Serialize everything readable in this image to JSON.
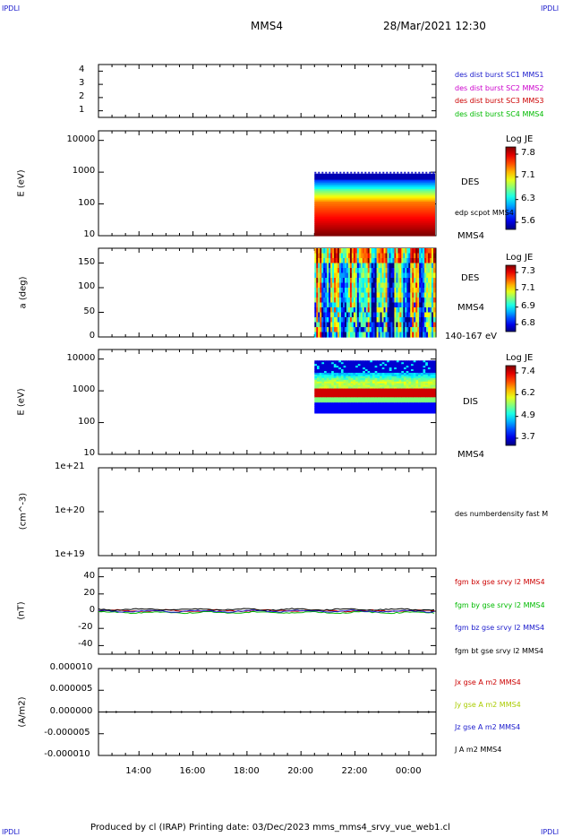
{
  "header": {
    "corner_tl": "IPDLI",
    "corner_tr": "IPDLI",
    "corner_bl": "IPDLI",
    "corner_br": "IPDLI",
    "spacecraft": "MMS4",
    "datetime": "28/Mar/2021 12:30"
  },
  "footer": {
    "text": "Produced by cl (IRAP)    Printing date: 03/Dec/2023    mms_mms4_srvy_vue_web1.cl"
  },
  "time_axis": {
    "ticks": [
      "14:00",
      "16:00",
      "18:00",
      "20:00",
      "22:00",
      "00:00"
    ]
  },
  "chart_data": [
    {
      "type": "line",
      "panel": "burst",
      "ylabel": "",
      "yticks": [
        "4",
        "3",
        "2",
        "1"
      ],
      "ylim": [
        0.5,
        4.5
      ],
      "legend": [
        {
          "text": "des dist burst SC1 MMS1",
          "color": "#1a1acc"
        },
        {
          "text": "des dist burst SC2 MMS2",
          "color": "#cc00cc"
        },
        {
          "text": "des dist burst SC3 MMS3",
          "color": "#cc0000"
        },
        {
          "text": "des dist burst SC4 MMS4",
          "color": "#00bb00"
        }
      ],
      "series": []
    },
    {
      "type": "heatmap",
      "panel": "des_energy",
      "ylabel": "E (eV)",
      "yticks": [
        "10000",
        "1000",
        "100",
        "10"
      ],
      "ylim": [
        10,
        20000
      ],
      "scale": "log",
      "data_start": "20:30",
      "data_end": "00:58",
      "energy_range": [
        10,
        900
      ],
      "side_labels": [
        "DES",
        "edp scpot MMS4",
        "MMS4"
      ],
      "colorbar": {
        "title": "Log JE",
        "ticks": [
          "7.8",
          "7.1",
          "6.3",
          "5.6"
        ]
      }
    },
    {
      "type": "heatmap",
      "panel": "des_pitch",
      "ylabel": "a (deg)",
      "yticks": [
        "150",
        "100",
        "50",
        "0"
      ],
      "ylim": [
        0,
        180
      ],
      "data_start": "20:30",
      "data_end": "00:58",
      "side_labels": [
        "DES",
        "MMS4",
        "140-167 eV"
      ],
      "colorbar": {
        "title": "Log JE",
        "ticks": [
          "7.3",
          "7.1",
          "6.9",
          "6.8"
        ]
      }
    },
    {
      "type": "heatmap",
      "panel": "dis_energy",
      "ylabel": "E (eV)",
      "yticks": [
        "10000",
        "1000",
        "100",
        "10"
      ],
      "ylim": [
        10,
        20000
      ],
      "scale": "log",
      "data_start": "20:30",
      "data_end": "00:58",
      "energy_range": [
        200,
        9000
      ],
      "side_labels": [
        "DIS",
        "MMS4"
      ],
      "colorbar": {
        "title": "Log JE",
        "ticks": [
          "7.4",
          "6.2",
          "4.9",
          "3.7"
        ]
      }
    },
    {
      "type": "line",
      "panel": "density",
      "ylabel": "(cm^-3)",
      "yticks": [
        "1e+21",
        "1e+20",
        "1e+19"
      ],
      "scale": "log",
      "ylim": [
        1e+19,
        1e+21
      ],
      "legend": [
        {
          "text": "des numberdensity fast M",
          "color": "#000000"
        }
      ],
      "series": []
    },
    {
      "type": "line",
      "panel": "fgm",
      "ylabel": "(nT)",
      "yticks": [
        "40",
        "20",
        "0",
        "-20",
        "-40"
      ],
      "ylim": [
        -50,
        50
      ],
      "legend": [
        {
          "text": "fgm bx gse srvy l2 MMS4",
          "color": "#cc0000"
        },
        {
          "text": "fgm by gse srvy l2 MMS4",
          "color": "#00bb00"
        },
        {
          "text": "fgm bz gse srvy l2 MMS4",
          "color": "#1a1acc"
        },
        {
          "text": "fgm bt gse srvy l2 MMS4",
          "color": "#000000"
        }
      ],
      "series": [
        {
          "color": "#cc0000",
          "approx_level": 0.5
        },
        {
          "color": "#00bb00",
          "approx_level": -1.5
        },
        {
          "color": "#1a1acc",
          "approx_level": 0.0
        },
        {
          "color": "#000000",
          "approx_level": 2.0
        }
      ]
    },
    {
      "type": "line",
      "panel": "current",
      "ylabel": "(A/m2)",
      "yticks": [
        "0.000010",
        "0.000005",
        "0.000000",
        "-0.000005",
        "-0.000010"
      ],
      "ylim": [
        -1e-05,
        1e-05
      ],
      "legend": [
        {
          "text": "Jx gse A m2 MMS4",
          "color": "#cc0000"
        },
        {
          "text": "Jy gse A m2 MMS4",
          "color": "#aacc00"
        },
        {
          "text": "Jz gse A m2 MMS4",
          "color": "#1a1acc"
        },
        {
          "text": "J A m2 MMS4",
          "color": "#000000"
        }
      ],
      "series": [
        {
          "color": "#000000",
          "approx_level": 0.0
        }
      ]
    }
  ]
}
